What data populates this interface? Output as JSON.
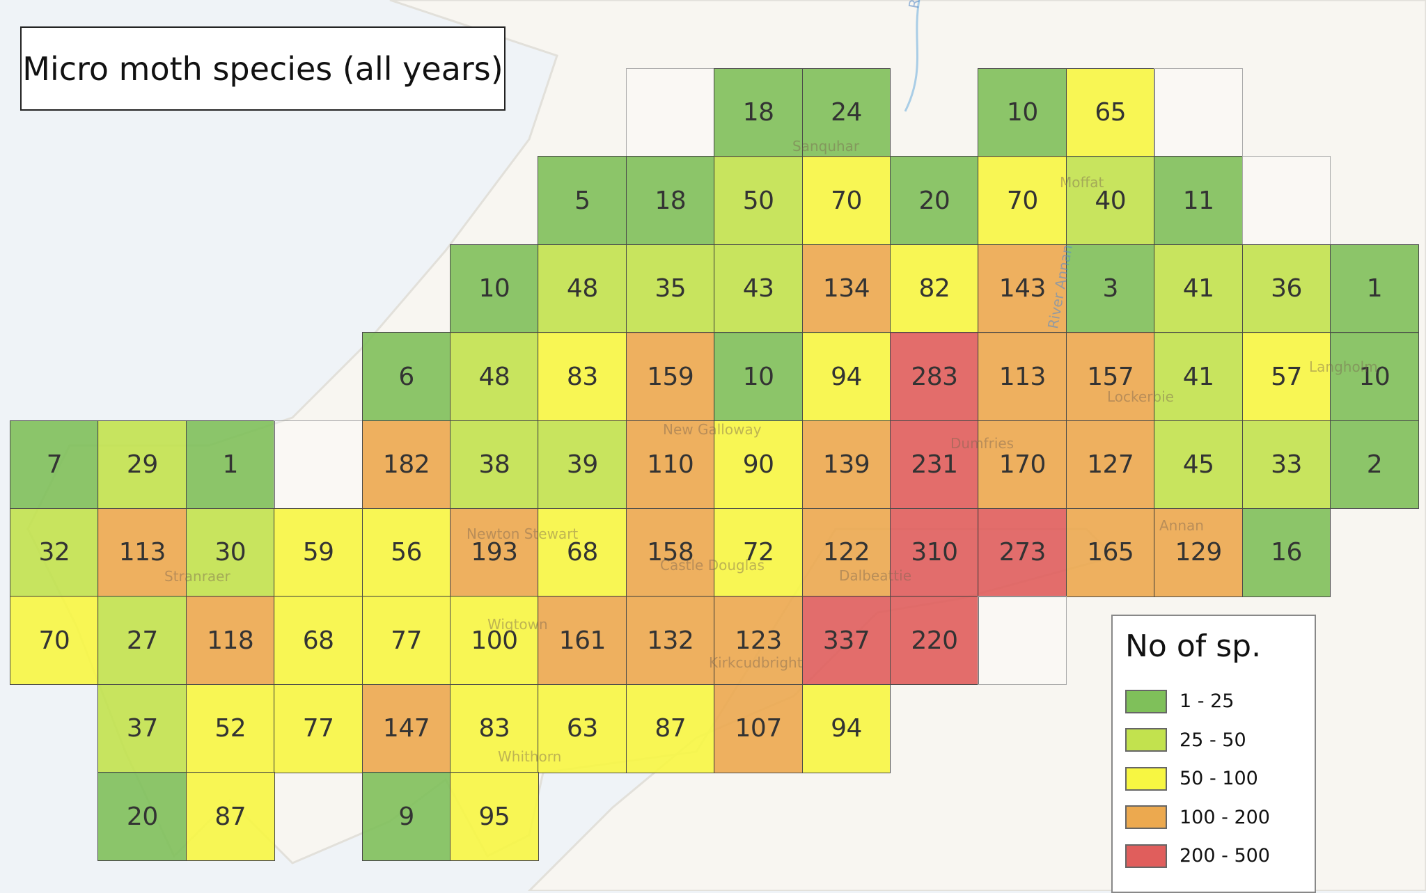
{
  "title": "Micro moth species (all years)",
  "legend": {
    "title": "No of sp.",
    "items": [
      {
        "label": "1 - 25",
        "min": 1,
        "max": 25,
        "color": "#7fc05a"
      },
      {
        "label": "25 - 50",
        "min": 25,
        "max": 50,
        "color": "#c2e24e"
      },
      {
        "label": "50 - 100",
        "min": 50,
        "max": 100,
        "color": "#f7f642"
      },
      {
        "label": "100 - 200",
        "min": 100,
        "max": 200,
        "color": "#eca94f"
      },
      {
        "label": "200 - 500",
        "min": 200,
        "max": 500,
        "color": "#e05e5c"
      }
    ]
  },
  "place_labels": [
    "Sanquhar",
    "Moffat",
    "River Annan",
    "Langholm",
    "Lockerbie",
    "Dumfries",
    "New Galloway",
    "Newton Stewart",
    "Castle Douglas",
    "Dalbeattie",
    "Annan",
    "Kirkcudbright",
    "Wigtown",
    "Whithorn",
    "Stranraer",
    "River Clyde"
  ],
  "chart_data": {
    "type": "heatmap",
    "description_of_values": "species count per grid square; null = no square, empty string = outlined square without data",
    "rows": [
      [
        null,
        null,
        null,
        null,
        null,
        null,
        null,
        "",
        18,
        24,
        null,
        10,
        65,
        "",
        null,
        null
      ],
      [
        null,
        null,
        null,
        null,
        null,
        null,
        5,
        18,
        50,
        70,
        20,
        70,
        40,
        11,
        "",
        null
      ],
      [
        null,
        null,
        null,
        null,
        null,
        10,
        48,
        35,
        43,
        134,
        82,
        143,
        3,
        41,
        36,
        1
      ],
      [
        null,
        null,
        null,
        null,
        6,
        48,
        83,
        159,
        10,
        94,
        283,
        113,
        157,
        41,
        57,
        10
      ],
      [
        7,
        29,
        1,
        "",
        182,
        38,
        39,
        110,
        90,
        139,
        231,
        170,
        127,
        45,
        33,
        2
      ],
      [
        32,
        113,
        30,
        59,
        56,
        193,
        68,
        158,
        72,
        122,
        310,
        273,
        165,
        129,
        16,
        null
      ],
      [
        70,
        27,
        118,
        68,
        77,
        100,
        161,
        132,
        123,
        337,
        220,
        "",
        null,
        null,
        null,
        null
      ],
      [
        null,
        37,
        52,
        77,
        147,
        83,
        63,
        87,
        107,
        94,
        null,
        null,
        null,
        null,
        null,
        null
      ],
      [
        null,
        20,
        87,
        null,
        9,
        95,
        null,
        null,
        null,
        null,
        null,
        null,
        null,
        null,
        null,
        null
      ]
    ]
  }
}
